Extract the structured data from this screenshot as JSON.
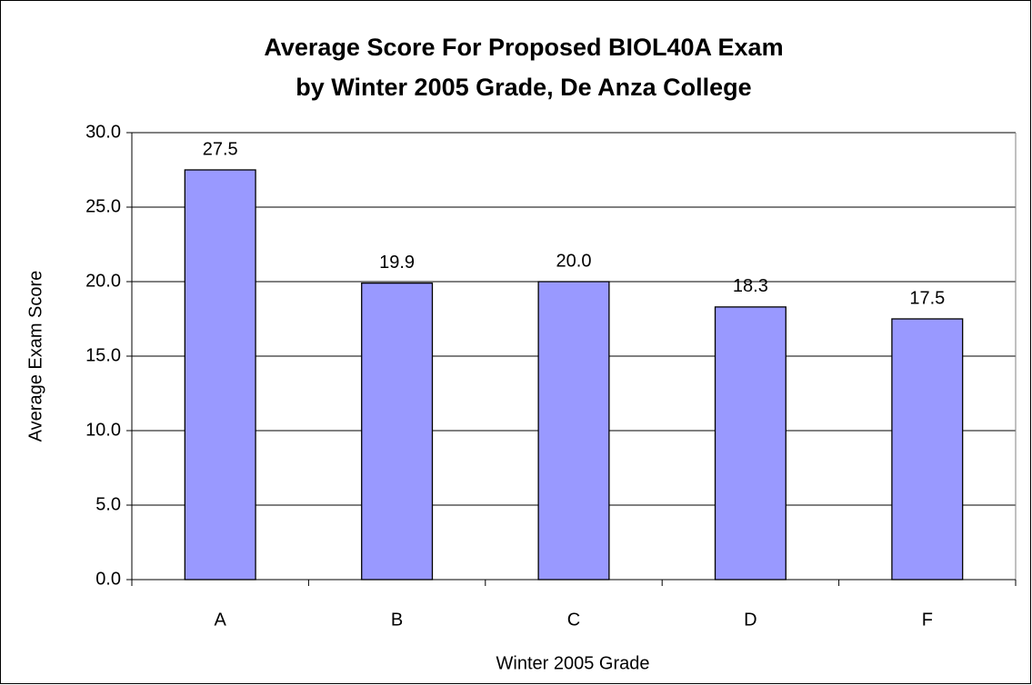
{
  "chart_data": {
    "type": "bar",
    "title": [
      "Average Score For Proposed BIOL40A Exam",
      "by Winter 2005 Grade, De Anza College"
    ],
    "x_label": "Winter 2005 Grade",
    "y_label": "Average Exam Score",
    "categories": [
      "A",
      "B",
      "C",
      "D",
      "F"
    ],
    "values": [
      27.5,
      19.9,
      20.0,
      18.3,
      17.5
    ],
    "value_labels": [
      "27.5",
      "19.9",
      "20.0",
      "18.3",
      "17.5"
    ],
    "color": "#9999ff",
    "ylim": [
      0,
      30
    ],
    "yticks": [
      {
        "value": 0,
        "label": "0.0"
      },
      {
        "value": 5,
        "label": "5.0"
      },
      {
        "value": 10,
        "label": "10.0"
      },
      {
        "value": 15,
        "label": "15.0"
      },
      {
        "value": 20,
        "label": "20.0"
      },
      {
        "value": 25,
        "label": "25.0"
      },
      {
        "value": 30,
        "label": "30.0"
      }
    ],
    "grid": true
  }
}
